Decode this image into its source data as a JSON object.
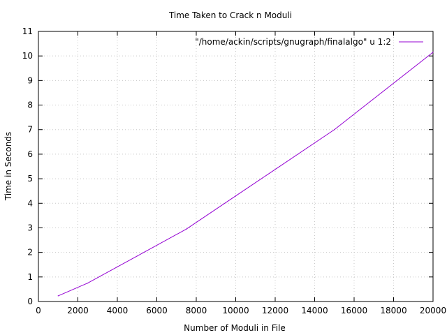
{
  "chart_data": {
    "type": "line",
    "title": "Time Taken to Crack n Moduli",
    "xlabel": "Number of Moduli in File",
    "ylabel": "Time in Seconds",
    "xlim": [
      0,
      20000
    ],
    "ylim": [
      0,
      11
    ],
    "xticks": [
      0,
      2000,
      4000,
      6000,
      8000,
      10000,
      12000,
      14000,
      16000,
      18000,
      20000
    ],
    "yticks": [
      0,
      1,
      2,
      3,
      4,
      5,
      6,
      7,
      8,
      9,
      10,
      11
    ],
    "grid": true,
    "legend_position": "top-right",
    "series": [
      {
        "name": "\"/home/ackin/scripts/gnugraph/finalalgo\" u 1:2",
        "color": "#9400d3",
        "x": [
          1000,
          2500,
          5000,
          7500,
          10000,
          15000,
          20000
        ],
        "y": [
          0.23,
          0.75,
          1.85,
          2.95,
          4.3,
          7.0,
          10.15
        ]
      }
    ]
  }
}
